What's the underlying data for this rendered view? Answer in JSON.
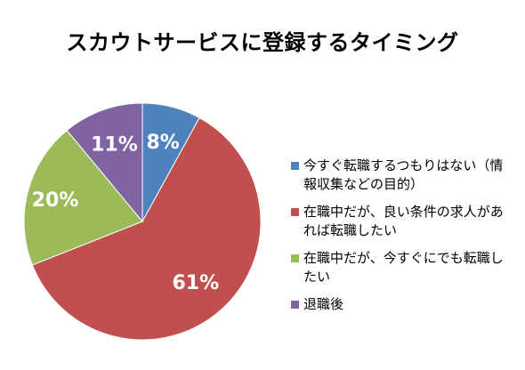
{
  "chart_data": {
    "type": "pie",
    "title": "スカウトサービスに登録するタイミング",
    "categories": [
      "今すぐ転職するつもりはない（情報収集などの目的）",
      "在職中だが、良い条件の求人があれば転職したい",
      "在職中だが、今すぐにでも転職したい",
      "退職後"
    ],
    "values": [
      8,
      61,
      20,
      11
    ],
    "value_labels": [
      "8%",
      "61%",
      "20%",
      "11%"
    ],
    "colors": [
      "#4f81bd",
      "#c0504d",
      "#9bbb59",
      "#8064a2"
    ],
    "legend": {
      "placement": "right",
      "items": [
        "今すぐ転職するつもりはない（情報収集などの目的）",
        "在職中だが、良い条件の求人があれば転職したい",
        "在職中だが、今すぐにでも転職したい",
        "退職後"
      ]
    }
  }
}
